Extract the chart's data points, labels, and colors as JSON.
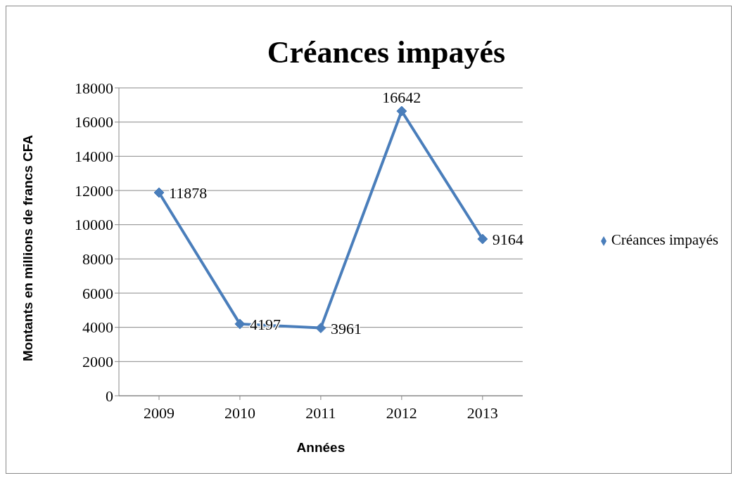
{
  "chart_data": {
    "type": "line",
    "title": "Créances impayés",
    "xlabel": "Années",
    "ylabel": "Montants en millions de francs CFA",
    "categories": [
      "2009",
      "2010",
      "2011",
      "2012",
      "2013"
    ],
    "series": [
      {
        "name": "Créances impayés",
        "color": "#4a7ebb",
        "values": [
          11878,
          4197,
          3961,
          16642,
          9164
        ]
      }
    ],
    "ylim": [
      0,
      18000
    ],
    "yticks": [
      0,
      2000,
      4000,
      6000,
      8000,
      10000,
      12000,
      14000,
      16000,
      18000
    ],
    "grid": "y",
    "legend": "right",
    "marker": "diamond",
    "line_style": "solid",
    "data_labels": true
  }
}
